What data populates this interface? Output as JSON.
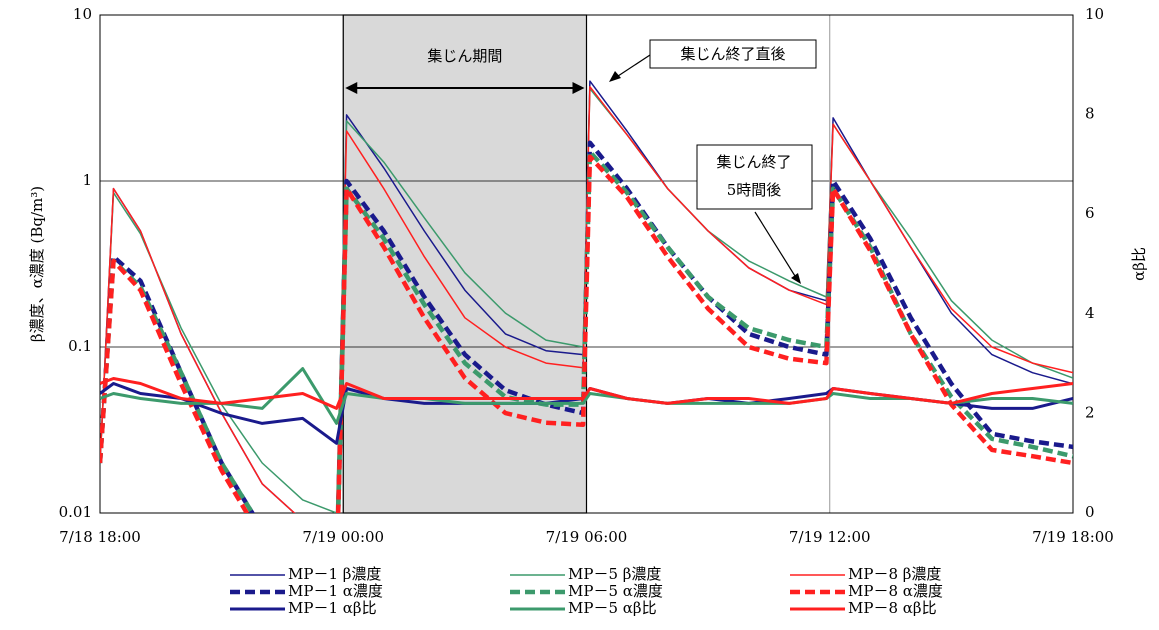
{
  "chart_data": {
    "type": "line",
    "y_label": "β濃度、α濃度 (Bq/m³)",
    "y2_label": "αβ比",
    "x": [
      "7/18 18:00",
      "7/18 18:20",
      "7/18 19:00",
      "7/18 20:00",
      "7/18 21:00",
      "7/18 22:00",
      "7/18 23:00",
      "7/18 23:50",
      "7/19 00:05",
      "7/19 01:00",
      "7/19 02:00",
      "7/19 03:00",
      "7/19 04:00",
      "7/19 05:00",
      "7/19 05:55",
      "7/19 06:05",
      "7/19 07:00",
      "7/19 08:00",
      "7/19 09:00",
      "7/19 10:00",
      "7/19 11:00",
      "7/19 11:55",
      "7/19 12:05",
      "7/19 13:00",
      "7/19 14:00",
      "7/19 15:00",
      "7/19 16:00",
      "7/19 17:00",
      "7/19 18:00"
    ],
    "xlim": [
      "7/18 18:00",
      "7/19 18:00"
    ],
    "xticks": [
      "7/18 18:00",
      "7/19 00:00",
      "7/19 06:00",
      "7/19 12:00",
      "7/19 18:00"
    ],
    "ylim": [
      0.01,
      10
    ],
    "yticks": [
      0.01,
      0.1,
      1,
      10
    ],
    "log_y": true,
    "y2lim": [
      0,
      10
    ],
    "y2ticks": [
      0,
      2,
      4,
      6,
      8,
      10
    ],
    "grid": true,
    "series": [
      {
        "name": "MP－1 β濃度",
        "color": "#1a1a8c",
        "linestyle": "solid",
        "values": [
          0.02,
          0.9,
          0.5,
          0.12,
          0.04,
          0.015,
          0.009,
          0.008,
          2.5,
          1.2,
          0.5,
          0.22,
          0.12,
          0.095,
          0.09,
          4.0,
          2.0,
          0.9,
          0.5,
          0.3,
          0.22,
          0.19,
          2.4,
          1.0,
          0.4,
          0.16,
          0.09,
          0.07,
          0.06
        ]
      },
      {
        "name": "MP－5 β濃度",
        "color": "#3c9a6c",
        "linestyle": "solid",
        "values": [
          0.02,
          0.85,
          0.48,
          0.13,
          0.045,
          0.02,
          0.012,
          0.01,
          2.3,
          1.3,
          0.6,
          0.28,
          0.16,
          0.11,
          0.1,
          3.6,
          1.9,
          0.9,
          0.5,
          0.33,
          0.25,
          0.2,
          2.2,
          1.0,
          0.45,
          0.19,
          0.11,
          0.08,
          0.065
        ]
      },
      {
        "name": "MP－8 β濃度",
        "color": "#ff2020",
        "linestyle": "solid",
        "values": [
          0.02,
          0.9,
          0.5,
          0.12,
          0.04,
          0.015,
          0.009,
          0.008,
          2.0,
          0.9,
          0.35,
          0.15,
          0.1,
          0.08,
          0.075,
          3.7,
          1.9,
          0.9,
          0.5,
          0.3,
          0.22,
          0.18,
          2.2,
          1.0,
          0.4,
          0.17,
          0.1,
          0.08,
          0.07
        ]
      },
      {
        "name": "MP－1 α濃度",
        "color": "#1a1a8c",
        "linestyle": "dashed",
        "values": [
          0.02,
          0.35,
          0.25,
          0.07,
          0.02,
          0.008,
          0.005,
          0.004,
          1.0,
          0.5,
          0.2,
          0.09,
          0.055,
          0.045,
          0.04,
          1.7,
          0.9,
          0.4,
          0.2,
          0.12,
          0.1,
          0.09,
          1.0,
          0.45,
          0.15,
          0.06,
          0.03,
          0.027,
          0.025
        ]
      },
      {
        "name": "MP－5 α濃度",
        "color": "#3c9a6c",
        "linestyle": "dashed",
        "values": [
          0.02,
          0.33,
          0.23,
          0.07,
          0.02,
          0.008,
          0.005,
          0.004,
          0.9,
          0.45,
          0.18,
          0.08,
          0.05,
          0.045,
          0.045,
          1.5,
          0.85,
          0.4,
          0.2,
          0.13,
          0.11,
          0.1,
          0.9,
          0.4,
          0.12,
          0.05,
          0.028,
          0.025,
          0.022
        ]
      },
      {
        "name": "MP－8 α濃度",
        "color": "#ff2020",
        "linestyle": "dashed",
        "values": [
          0.02,
          0.33,
          0.22,
          0.06,
          0.018,
          0.007,
          0.004,
          0.004,
          0.9,
          0.4,
          0.15,
          0.065,
          0.04,
          0.035,
          0.034,
          1.4,
          0.8,
          0.35,
          0.17,
          0.1,
          0.085,
          0.08,
          0.9,
          0.38,
          0.12,
          0.045,
          0.024,
          0.022,
          0.02
        ]
      },
      {
        "name": "MP－1 αβ比",
        "color": "#1a1a8c",
        "linestyle": "solid",
        "axis": "y2",
        "values": [
          2.4,
          2.6,
          2.4,
          2.3,
          2.0,
          1.8,
          1.9,
          1.4,
          2.5,
          2.3,
          2.2,
          2.2,
          2.2,
          2.2,
          2.3,
          2.5,
          2.3,
          2.2,
          2.3,
          2.2,
          2.3,
          2.4,
          2.5,
          2.4,
          2.3,
          2.2,
          2.1,
          2.1,
          2.3
        ]
      },
      {
        "name": "MP－5 αβ比",
        "color": "#3c9a6c",
        "linestyle": "solid",
        "axis": "y2",
        "values": [
          2.3,
          2.4,
          2.3,
          2.2,
          2.2,
          2.1,
          2.9,
          1.8,
          2.4,
          2.3,
          2.3,
          2.2,
          2.2,
          2.2,
          2.2,
          2.4,
          2.3,
          2.2,
          2.2,
          2.2,
          2.2,
          2.3,
          2.4,
          2.3,
          2.3,
          2.2,
          2.3,
          2.3,
          2.2
        ]
      },
      {
        "name": "MP－8 αβ比",
        "color": "#ff2020",
        "linestyle": "solid",
        "axis": "y2",
        "values": [
          2.6,
          2.7,
          2.6,
          2.3,
          2.2,
          2.3,
          2.4,
          2.1,
          2.6,
          2.3,
          2.3,
          2.3,
          2.3,
          2.3,
          2.3,
          2.5,
          2.3,
          2.2,
          2.3,
          2.3,
          2.2,
          2.3,
          2.5,
          2.4,
          2.3,
          2.2,
          2.4,
          2.5,
          2.6
        ]
      }
    ],
    "shaded_period": {
      "from": "7/19 00:00",
      "to": "7/19 06:00",
      "label": "集じん期間"
    },
    "annotations": [
      {
        "lines": [
          "集じん終了直後"
        ]
      },
      {
        "lines": [
          "集じん終了",
          "5時間後"
        ]
      }
    ]
  }
}
